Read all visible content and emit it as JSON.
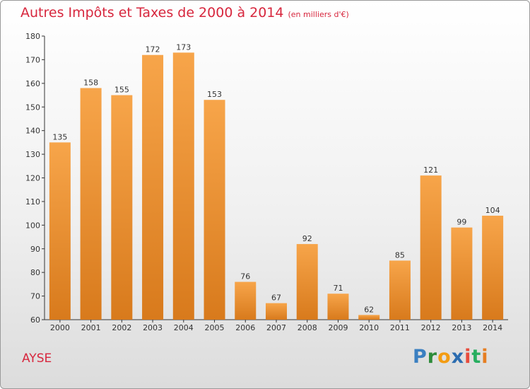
{
  "title": "Autres Impôts et Taxes de 2000 à 2014",
  "subtitle": "(en milliers d'€)",
  "commune": "AYSE",
  "brand": {
    "letters": [
      "P",
      "r",
      "o",
      "x",
      "i",
      "t",
      "i"
    ],
    "colors": [
      "#3a7fc1",
      "#2e8b3a",
      "#f39c12",
      "#2b6cb0",
      "#e74c3c",
      "#27ae60",
      "#e67e22"
    ]
  },
  "colors": {
    "accent": "#d7263d",
    "bar_light": "#f7a54a",
    "bar_dark": "#d87a1c",
    "axis": "#333333"
  },
  "chart_data": {
    "type": "bar",
    "categories": [
      "2000",
      "2001",
      "2002",
      "2003",
      "2004",
      "2005",
      "2006",
      "2007",
      "2008",
      "2009",
      "2010",
      "2011",
      "2012",
      "2013",
      "2014"
    ],
    "values": [
      135,
      158,
      155,
      172,
      173,
      153,
      76,
      67,
      92,
      71,
      62,
      85,
      121,
      99,
      104
    ],
    "ylim": [
      60,
      180
    ],
    "yticks": [
      60,
      70,
      80,
      90,
      100,
      110,
      120,
      130,
      140,
      150,
      160,
      170,
      180
    ],
    "grid": false,
    "data_labels": true
  }
}
